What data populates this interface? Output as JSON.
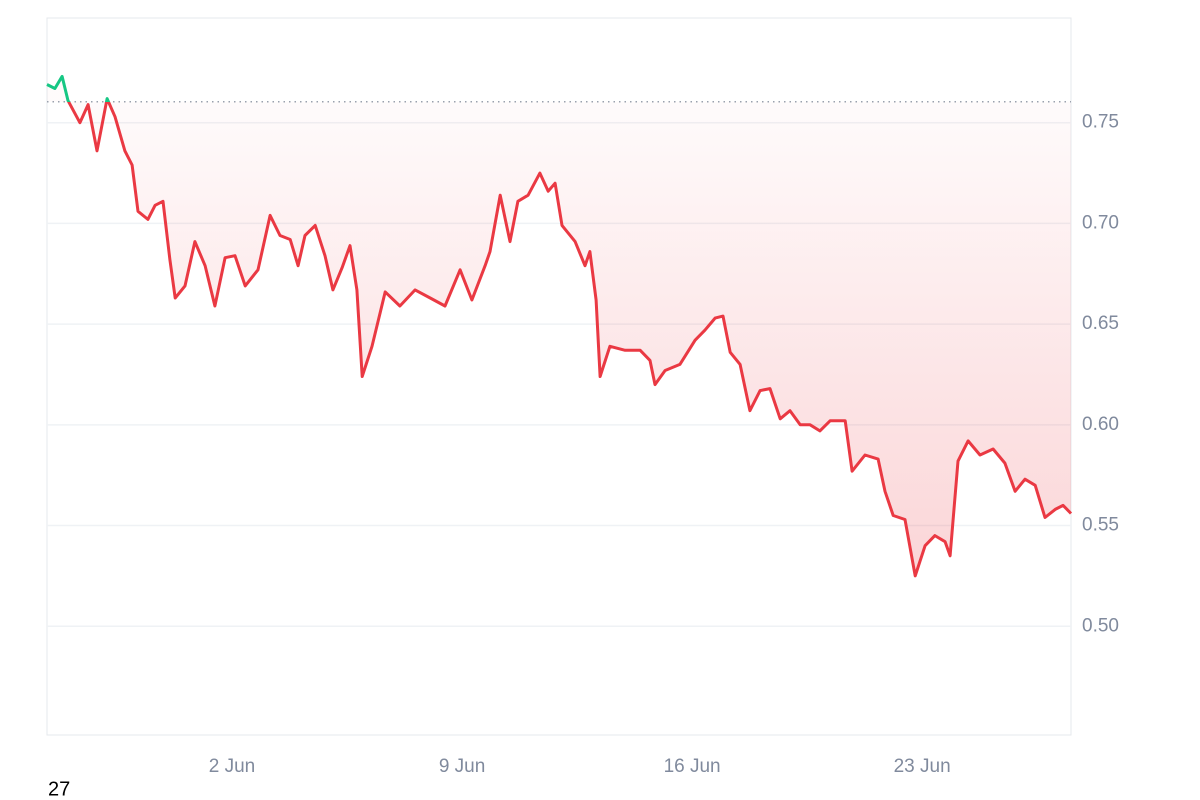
{
  "chart_data": {
    "type": "line",
    "x": [
      -3.63,
      -3.39,
      -3.17,
      -2.99,
      -2.63,
      -2.38,
      -2.11,
      -1.8,
      -1.56,
      -1.26,
      -1.04,
      -0.86,
      -0.56,
      -0.34,
      -0.1,
      0.11,
      0.27,
      0.57,
      0.87,
      1.18,
      1.48,
      1.79,
      2.09,
      2.4,
      2.79,
      3.16,
      3.46,
      3.77,
      4.01,
      4.22,
      4.53,
      4.83,
      5.07,
      5.35,
      5.59,
      5.8,
      5.96,
      6.26,
      6.66,
      7.11,
      7.57,
      8.03,
      8.48,
      8.94,
      9.3,
      9.7,
      9.85,
      10.16,
      10.46,
      10.7,
      11.01,
      11.37,
      11.62,
      11.83,
      12.04,
      12.44,
      12.74,
      12.89,
      13.08,
      13.2,
      13.5,
      13.96,
      14.42,
      14.72,
      14.87,
      15.18,
      15.63,
      16.09,
      16.39,
      16.7,
      16.94,
      17.16,
      17.46,
      17.76,
      18.07,
      18.37,
      18.68,
      18.98,
      19.29,
      19.59,
      19.89,
      20.2,
      20.66,
      20.87,
      21.26,
      21.66,
      21.87,
      22.12,
      22.48,
      22.79,
      23.09,
      23.39,
      23.7,
      23.85,
      24.09,
      24.4,
      24.76,
      25.16,
      25.52,
      25.83,
      26.13,
      26.44,
      26.74,
      27.05,
      27.29,
      27.53
    ],
    "values": [
      0.769,
      0.767,
      0.773,
      0.761,
      0.75,
      0.759,
      0.736,
      0.762,
      0.753,
      0.736,
      0.729,
      0.706,
      0.702,
      0.709,
      0.711,
      0.682,
      0.663,
      0.669,
      0.691,
      0.679,
      0.659,
      0.683,
      0.684,
      0.669,
      0.677,
      0.704,
      0.694,
      0.692,
      0.679,
      0.694,
      0.699,
      0.684,
      0.667,
      0.678,
      0.689,
      0.667,
      0.624,
      0.639,
      0.666,
      0.659,
      0.667,
      0.663,
      0.659,
      0.677,
      0.662,
      0.679,
      0.686,
      0.714,
      0.691,
      0.711,
      0.714,
      0.725,
      0.716,
      0.72,
      0.699,
      0.691,
      0.679,
      0.686,
      0.662,
      0.624,
      0.639,
      0.637,
      0.637,
      0.632,
      0.62,
      0.627,
      0.63,
      0.642,
      0.647,
      0.653,
      0.654,
      0.636,
      0.63,
      0.607,
      0.617,
      0.618,
      0.603,
      0.607,
      0.6,
      0.6,
      0.597,
      0.602,
      0.602,
      0.577,
      0.585,
      0.583,
      0.567,
      0.555,
      0.553,
      0.525,
      0.54,
      0.545,
      0.542,
      0.535,
      0.582,
      0.592,
      0.585,
      0.588,
      0.581,
      0.567,
      0.573,
      0.57,
      0.554,
      0.558,
      0.56,
      0.556
    ],
    "baseline": 0.7604,
    "color": "#ea3943",
    "up_color": "#16c784",
    "xlim": [
      -3.63,
      27.53
    ],
    "xticks": [
      {
        "value": 2,
        "label": "2 Jun"
      },
      {
        "value": 9,
        "label": "9 Jun"
      },
      {
        "value": 16,
        "label": "16 Jun"
      },
      {
        "value": 23,
        "label": "23 Jun"
      }
    ],
    "ylim": [
      0.446,
      0.802
    ],
    "yticks": [
      {
        "value": 0.5,
        "label": "0.50"
      },
      {
        "value": 0.55,
        "label": "0.55"
      },
      {
        "value": 0.6,
        "label": "0.60"
      },
      {
        "value": 0.65,
        "label": "0.65"
      },
      {
        "value": 0.7,
        "label": "0.70"
      },
      {
        "value": 0.75,
        "label": "0.75"
      }
    ],
    "grid": true,
    "corner_label": "27"
  }
}
